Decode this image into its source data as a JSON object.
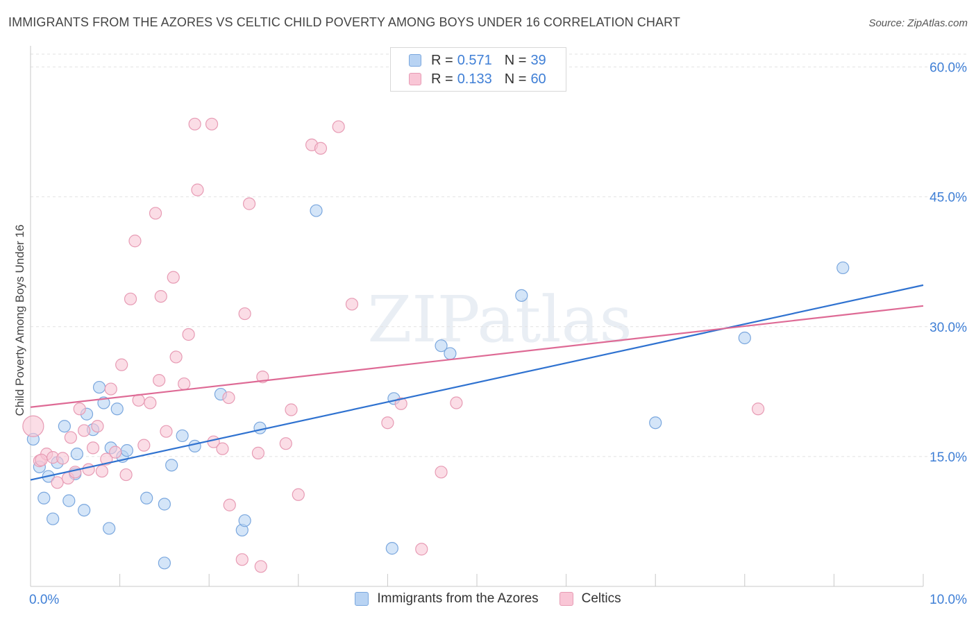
{
  "chart_data": {
    "type": "scatter",
    "title": "IMMIGRANTS FROM THE AZORES VS CELTIC CHILD POVERTY AMONG BOYS UNDER 16 CORRELATION CHART",
    "source": "Source: ZipAtlas.com",
    "xlabel": "",
    "ylabel": "Child Poverty Among Boys Under 16",
    "xlim": [
      0,
      10
    ],
    "ylim": [
      0,
      60
    ],
    "x_tick_labels": [
      "0.0%",
      "10.0%"
    ],
    "y_tick_labels": [
      "15.0%",
      "30.0%",
      "45.0%",
      "60.0%"
    ],
    "y_ticks": [
      15,
      30,
      45,
      60
    ],
    "colors": {
      "azores_fill": "#b8d3f3",
      "azores_stroke": "#7aa7de",
      "azores_line": "#2f72d0",
      "celtics_fill": "#f9c6d6",
      "celtics_stroke": "#e79bb4",
      "celtics_line": "#de6a95",
      "tick_label": "#3f7fd6",
      "grid": "#e2e2e2"
    },
    "legend": {
      "r_label": "R =",
      "n_label": "N =",
      "entries": [
        {
          "r": "0.571",
          "n": "39"
        },
        {
          "r": "0.133",
          "n": "60"
        }
      ]
    },
    "watermark": "ZIPatlas",
    "series": [
      {
        "name": "Immigrants from the Azores",
        "trend": [
          [
            0,
            12.3
          ],
          [
            10,
            34.8
          ]
        ],
        "points": [
          [
            0.03,
            17.0
          ],
          [
            0.1,
            13.8
          ],
          [
            0.2,
            12.7
          ],
          [
            0.3,
            14.3
          ],
          [
            0.38,
            18.5
          ],
          [
            0.15,
            10.2
          ],
          [
            0.25,
            7.8
          ],
          [
            0.43,
            9.9
          ],
          [
            0.5,
            13.0
          ],
          [
            0.52,
            15.3
          ],
          [
            0.6,
            8.8
          ],
          [
            0.63,
            19.9
          ],
          [
            0.7,
            18.1
          ],
          [
            0.77,
            23.0
          ],
          [
            0.82,
            21.2
          ],
          [
            0.88,
            6.7
          ],
          [
            0.9,
            16.0
          ],
          [
            0.97,
            20.5
          ],
          [
            1.03,
            15.0
          ],
          [
            1.08,
            15.7
          ],
          [
            1.3,
            10.2
          ],
          [
            1.5,
            9.5
          ],
          [
            1.58,
            14.0
          ],
          [
            1.5,
            2.7
          ],
          [
            1.7,
            17.4
          ],
          [
            1.84,
            16.2
          ],
          [
            2.13,
            22.2
          ],
          [
            2.37,
            6.5
          ],
          [
            2.4,
            7.6
          ],
          [
            2.57,
            18.3
          ],
          [
            3.2,
            43.4
          ],
          [
            4.05,
            4.4
          ],
          [
            4.07,
            21.7
          ],
          [
            4.6,
            27.8
          ],
          [
            4.7,
            26.9
          ],
          [
            5.5,
            33.6
          ],
          [
            7.0,
            18.9
          ],
          [
            8.0,
            28.7
          ],
          [
            9.1,
            36.8
          ]
        ]
      },
      {
        "name": "Celtics",
        "trend": [
          [
            0,
            20.7
          ],
          [
            10,
            32.4
          ]
        ],
        "points": [
          [
            0.03,
            18.5
          ],
          [
            0.1,
            14.5
          ],
          [
            0.18,
            15.3
          ],
          [
            0.25,
            14.9
          ],
          [
            0.3,
            12.0
          ],
          [
            0.36,
            14.8
          ],
          [
            0.42,
            12.5
          ],
          [
            0.45,
            17.2
          ],
          [
            0.5,
            13.2
          ],
          [
            0.55,
            20.5
          ],
          [
            0.6,
            18.0
          ],
          [
            0.65,
            13.5
          ],
          [
            0.7,
            16.0
          ],
          [
            0.75,
            18.5
          ],
          [
            0.8,
            13.3
          ],
          [
            0.85,
            14.7
          ],
          [
            0.9,
            22.8
          ],
          [
            0.95,
            15.5
          ],
          [
            1.02,
            25.6
          ],
          [
            1.07,
            12.9
          ],
          [
            1.12,
            33.2
          ],
          [
            1.17,
            39.9
          ],
          [
            1.21,
            21.5
          ],
          [
            1.27,
            16.3
          ],
          [
            1.34,
            21.2
          ],
          [
            1.4,
            43.1
          ],
          [
            1.44,
            23.8
          ],
          [
            1.46,
            33.5
          ],
          [
            1.52,
            17.9
          ],
          [
            1.6,
            35.7
          ],
          [
            1.63,
            26.5
          ],
          [
            1.72,
            23.4
          ],
          [
            1.77,
            29.1
          ],
          [
            1.84,
            53.4
          ],
          [
            1.87,
            45.8
          ],
          [
            2.03,
            53.4
          ],
          [
            2.05,
            16.7
          ],
          [
            2.15,
            15.9
          ],
          [
            2.22,
            21.8
          ],
          [
            2.23,
            9.4
          ],
          [
            2.37,
            3.1
          ],
          [
            2.4,
            31.5
          ],
          [
            2.45,
            44.2
          ],
          [
            2.55,
            15.4
          ],
          [
            2.58,
            2.3
          ],
          [
            2.6,
            24.2
          ],
          [
            2.86,
            16.5
          ],
          [
            2.92,
            20.4
          ],
          [
            3.0,
            10.6
          ],
          [
            3.15,
            51.0
          ],
          [
            3.25,
            50.6
          ],
          [
            3.45,
            53.1
          ],
          [
            3.6,
            32.6
          ],
          [
            4.0,
            18.9
          ],
          [
            4.15,
            21.1
          ],
          [
            4.38,
            4.3
          ],
          [
            4.6,
            13.2
          ],
          [
            4.77,
            21.2
          ],
          [
            8.15,
            20.5
          ],
          [
            0.12,
            14.6
          ]
        ]
      }
    ]
  }
}
